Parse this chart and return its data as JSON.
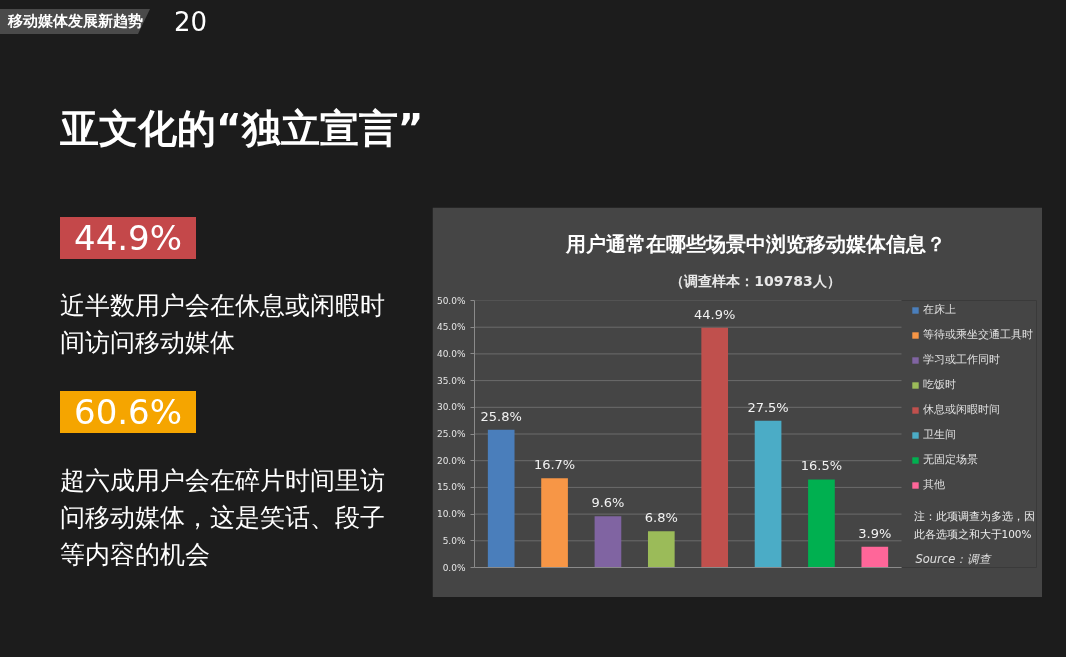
{
  "chart_data": {
    "type": "bar",
    "title": "用户通常在哪些场景中浏览移动媒体信息？",
    "subtitle": "（调查样本：109783人）",
    "categories": [
      null,
      null,
      null,
      null,
      null,
      null,
      null,
      null
    ],
    "series": [
      {
        "name": "在床上",
        "color": "#4a7ebb",
        "values": [
          25.8,
          null,
          null,
          null,
          null,
          null,
          null,
          null
        ],
        "value_labels": [
          "25.8%",
          null,
          null,
          null,
          null,
          null,
          null,
          null
        ]
      },
      {
        "name": "等待或乘坐交通工具时",
        "color": "#f79646",
        "values": [
          null,
          16.7,
          null,
          null,
          null,
          null,
          null,
          null
        ],
        "value_labels": [
          null,
          "16.7%",
          null,
          null,
          null,
          null,
          null,
          null
        ]
      },
      {
        "name": "学习或工作同时",
        "color": "#8064a2",
        "values": [
          null,
          null,
          9.6,
          null,
          null,
          null,
          null,
          null
        ],
        "value_labels": [
          null,
          null,
          "9.6%",
          null,
          null,
          null,
          null,
          null
        ]
      },
      {
        "name": "吃饭时",
        "color": "#9bbb59",
        "values": [
          null,
          null,
          null,
          6.8,
          null,
          null,
          null,
          null
        ],
        "value_labels": [
          null,
          null,
          null,
          "6.8%",
          null,
          null,
          null,
          null
        ]
      },
      {
        "name": "休息或闲暇时间",
        "color": "#c0504d",
        "values": [
          null,
          null,
          null,
          null,
          44.9,
          null,
          null,
          null
        ],
        "value_labels": [
          null,
          null,
          null,
          null,
          "44.9%",
          null,
          null,
          null
        ]
      },
      {
        "name": "卫生间",
        "color": "#4bacc6",
        "values": [
          null,
          null,
          null,
          null,
          null,
          27.5,
          null,
          null
        ],
        "value_labels": [
          null,
          null,
          null,
          null,
          null,
          "27.5%",
          null,
          null
        ]
      },
      {
        "name": "无固定场景",
        "color": "#00b050",
        "values": [
          null,
          null,
          null,
          null,
          null,
          null,
          16.5,
          null
        ],
        "value_labels": [
          null,
          null,
          null,
          null,
          null,
          null,
          "16.5%",
          null
        ]
      },
      {
        "name": "其他",
        "color": "#ff6699",
        "values": [
          null,
          null,
          null,
          null,
          null,
          null,
          null,
          3.9
        ],
        "value_labels": [
          null,
          null,
          null,
          null,
          null,
          null,
          null,
          "3.9%"
        ]
      }
    ],
    "ylim": [
      0,
      50
    ],
    "yticks": [
      {
        "value": 0,
        "label": "0.0%"
      },
      {
        "value": 5,
        "label": "5.0%"
      },
      {
        "value": 10,
        "label": "10.0%"
      },
      {
        "value": 15,
        "label": "15.0%"
      },
      {
        "value": 20,
        "label": "20.0%"
      },
      {
        "value": 25,
        "label": "25.0%"
      },
      {
        "value": 30,
        "label": "30.0%"
      },
      {
        "value": 35,
        "label": "35.0%"
      },
      {
        "value": 40,
        "label": "40.0%"
      },
      {
        "value": 45,
        "label": "45.0%"
      },
      {
        "value": 50,
        "label": "50.0%"
      }
    ],
    "grid": "y",
    "legend": "right",
    "tick_labels": "y",
    "annotations": [
      "移动媒体发展新趋势",
      "20",
      "亚文化的“独立宣言”",
      "44.9%",
      "近半数用户会在休息或闲暇时间访问移动媒体",
      "60.6%",
      "超六成用户会在碎片时间里访问移动媒体，这是笑话、段子等内容的机会",
      "注：此项调查为多选，因此各选项之和大于100%",
      "Source：调查"
    ]
  }
}
